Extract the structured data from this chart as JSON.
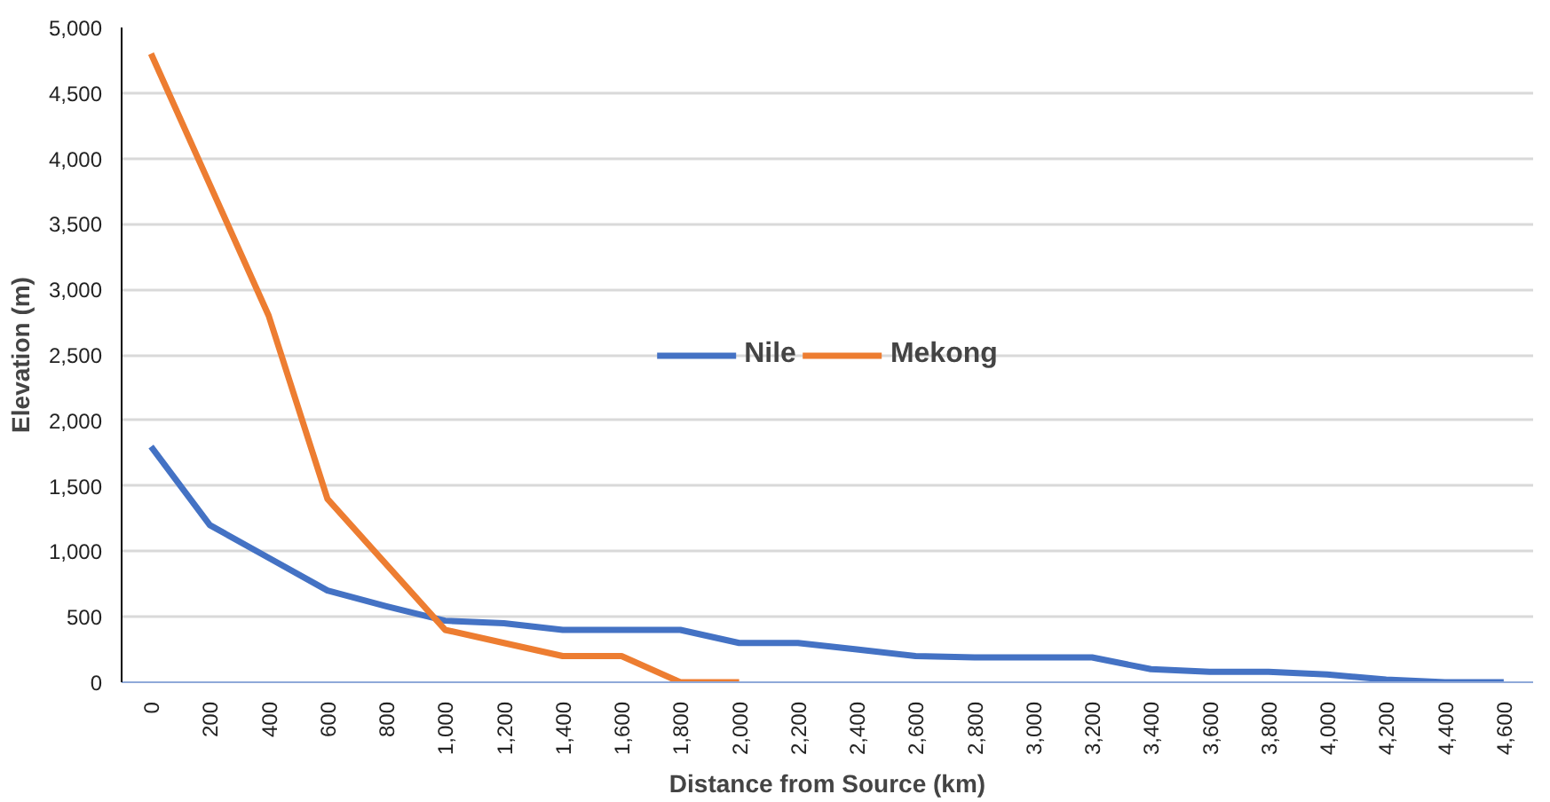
{
  "chart_data": {
    "type": "line",
    "xlabel": "Distance from Source (km)",
    "ylabel": "Elevation (m)",
    "categories": [
      "0",
      "200",
      "400",
      "600",
      "800",
      "1,000",
      "1,200",
      "1,400",
      "1,600",
      "1,800",
      "2,000",
      "2,200",
      "2,400",
      "2,600",
      "2,800",
      "3,000",
      "3,200",
      "3,400",
      "3,600",
      "3,800",
      "4,000",
      "4,200",
      "4,400",
      "4,600"
    ],
    "series": [
      {
        "name": "Nile",
        "color": "#4472c4",
        "values": [
          1800,
          1200,
          950,
          700,
          580,
          470,
          450,
          400,
          400,
          400,
          300,
          300,
          250,
          200,
          190,
          190,
          190,
          100,
          80,
          80,
          60,
          20,
          0,
          0
        ]
      },
      {
        "name": "Mekong",
        "color": "#ed7d31",
        "values": [
          4800,
          3800,
          2800,
          1400,
          900,
          400,
          300,
          200,
          200,
          0,
          0,
          null,
          null,
          null,
          null,
          null,
          null,
          null,
          null,
          null,
          null,
          null,
          null,
          null
        ]
      }
    ],
    "ylim": [
      0,
      5000
    ],
    "yticks": [
      0,
      500,
      {
        "value": 1000,
        "label": "1,000"
      },
      {
        "value": 1500,
        "label": "1,500"
      },
      {
        "value": 2000,
        "label": "2,000"
      },
      {
        "value": 2500,
        "label": "2,500"
      },
      {
        "value": 3000,
        "label": "3,000"
      },
      {
        "value": 3500,
        "label": "3,500"
      },
      {
        "value": 4000,
        "label": "4,000"
      },
      {
        "value": 4500,
        "label": "4,500"
      },
      {
        "value": 5000,
        "label": "5,000"
      }
    ],
    "grid": "y",
    "legend": "center",
    "marker": "none",
    "line_style": "solid"
  }
}
